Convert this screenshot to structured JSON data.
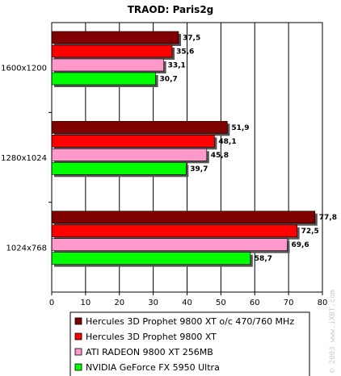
{
  "chart_data": {
    "type": "bar",
    "orientation": "horizontal",
    "title": "TRAOD: Paris2g",
    "xlabel": "",
    "ylabel": "",
    "categories": [
      "1600x1200",
      "1280x1024",
      "1024x768"
    ],
    "xlim": [
      0,
      80
    ],
    "x_ticks": [
      "0",
      "10",
      "20",
      "30",
      "40",
      "50",
      "60",
      "70",
      "80"
    ],
    "grid": true,
    "legend_position": "bottom",
    "series": [
      {
        "name": "Hercules 3D Prophet 9800 XT o/c 470/760 MHz",
        "color": "#800000",
        "values": [
          37.5,
          51.9,
          77.8
        ],
        "labels": [
          "37,5",
          "51,9",
          "77,8"
        ]
      },
      {
        "name": "Hercules 3D Prophet 9800 XT",
        "color": "#ff0000",
        "values": [
          35.6,
          48.1,
          72.5
        ],
        "labels": [
          "35,6",
          "48,1",
          "72,5"
        ]
      },
      {
        "name": "ATI RADEON 9800 XT 256MB",
        "color": "#ff99cc",
        "values": [
          33.1,
          45.8,
          69.6
        ],
        "labels": [
          "33,1",
          "45,8",
          "69,6"
        ]
      },
      {
        "name": "NVIDIA GeForce FX 5950 Ultra",
        "color": "#00ff00",
        "values": [
          30.7,
          39.7,
          58.7
        ],
        "labels": [
          "30,7",
          "39,7",
          "58,7"
        ]
      }
    ]
  },
  "watermark": "© 2003 www.iXBT.com"
}
